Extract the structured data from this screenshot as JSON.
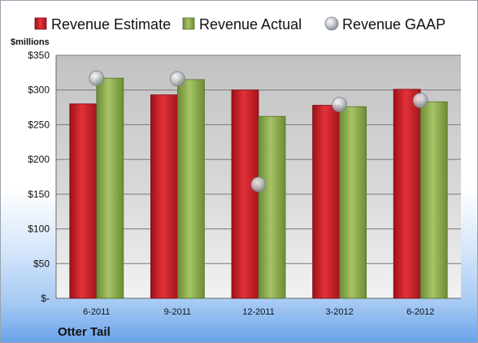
{
  "chart_data": {
    "type": "bar",
    "title": "",
    "xlabel": "",
    "ylabel": "$millions",
    "categories": [
      "6-2011",
      "9-2011",
      "12-2011",
      "3-2012",
      "6-2012"
    ],
    "series": [
      {
        "name": "Revenue Estimate",
        "kind": "bar",
        "color": "#d32630",
        "values": [
          280,
          293,
          300,
          278,
          301
        ]
      },
      {
        "name": "Revenue Actual",
        "kind": "bar",
        "color": "#8fae4f",
        "values": [
          317,
          315,
          262,
          276,
          283
        ]
      },
      {
        "name": "Revenue GAAP",
        "kind": "marker",
        "color": "#b9bec6",
        "values": [
          317,
          316,
          164,
          279,
          285
        ]
      }
    ],
    "ylim": [
      0,
      350
    ],
    "yticks": [
      0,
      50,
      100,
      150,
      200,
      250,
      300,
      350
    ],
    "ytick_labels": [
      "$-",
      "$50",
      "$100",
      "$150",
      "$200",
      "$250",
      "$300",
      "$350"
    ],
    "grid": true,
    "legend_position": "top",
    "company": "Otter Tail"
  }
}
